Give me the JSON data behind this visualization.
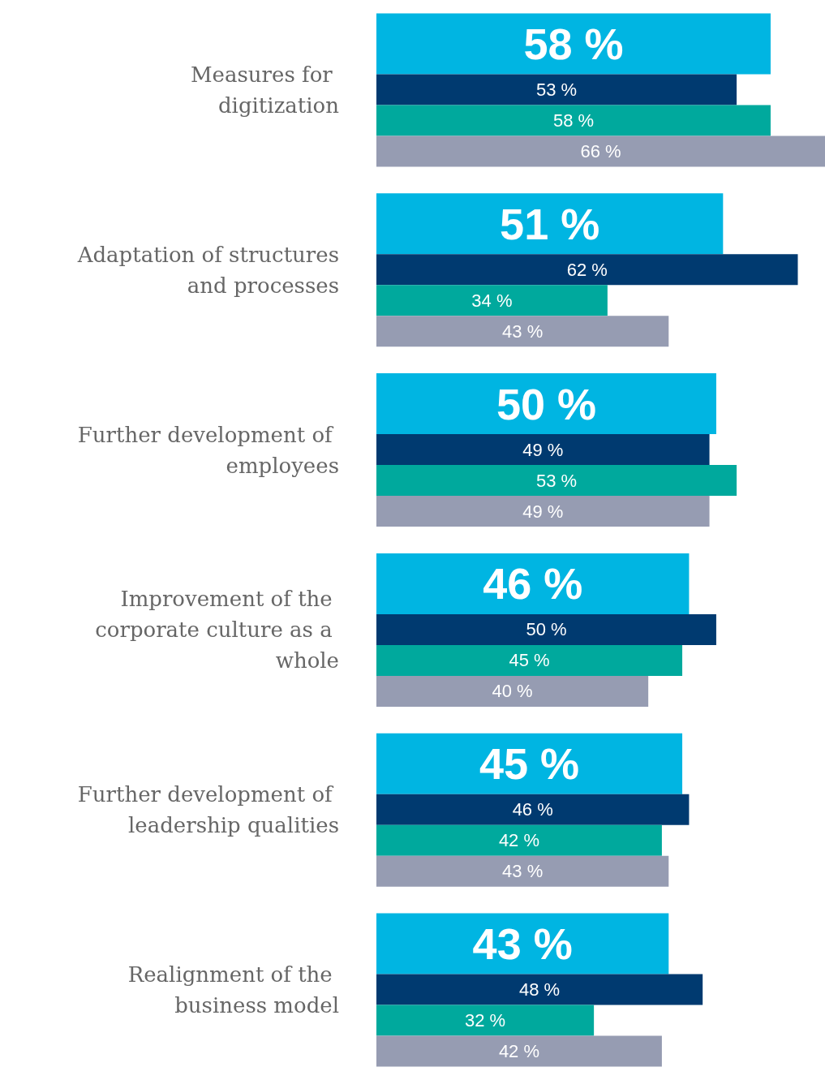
{
  "chart_data": {
    "type": "bar",
    "orientation": "horizontal",
    "categories": [
      "Measures for digitization",
      "Adaptation of structures and processes",
      "Further development of employees",
      "Improvement of the corporate culture as a whole",
      "Further development of leadership qualities",
      "Realignment of the business model"
    ],
    "series": [
      {
        "color": "#00b5e2",
        "values": [
          58,
          51,
          50,
          46,
          45,
          43
        ],
        "value_labels": [
          "58 %",
          "51 %",
          "50 %",
          "46 %",
          "45 %",
          "43 %"
        ]
      },
      {
        "color": "#003a70",
        "values": [
          53,
          62,
          49,
          50,
          46,
          48
        ],
        "value_labels": [
          "53 %",
          "62 %",
          "49 %",
          "50 %",
          "46 %",
          "48 %"
        ]
      },
      {
        "color": "#00a99d",
        "values": [
          58,
          34,
          53,
          45,
          42,
          32
        ],
        "value_labels": [
          "58 %",
          "34 %",
          "53 %",
          "45 %",
          "42 %",
          "32 %"
        ]
      },
      {
        "color": "#969cb2",
        "values": [
          66,
          43,
          49,
          40,
          43,
          42
        ],
        "value_labels": [
          "66 %",
          "43 %",
          "49 %",
          "40 %",
          "43 %",
          "42 %"
        ]
      }
    ]
  }
}
